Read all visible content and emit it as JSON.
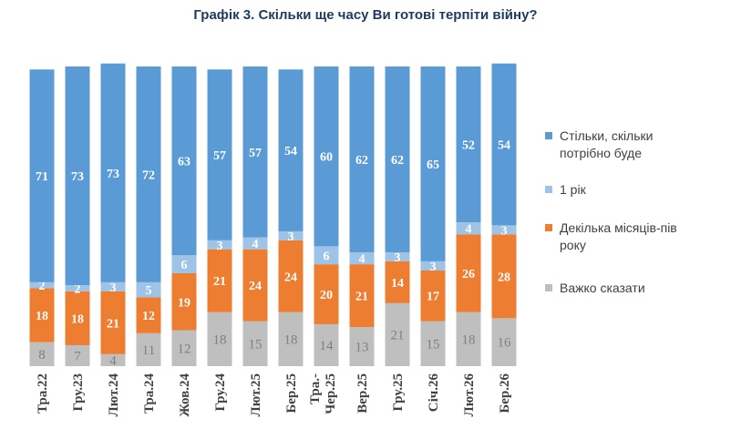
{
  "chart_data": {
    "type": "bar",
    "stacked": true,
    "title": "Графік 3. Скільки ще часу Ви готові терпіти війну?",
    "categories": [
      "Тра.22",
      "Гру.23",
      "Лют.24",
      "Тра.24",
      "Жов.24",
      "Гру.24",
      "Лют.25",
      "Бер.25",
      "Тра.-Чер.25",
      "Вер.25",
      "Гру.25",
      "Січ.26",
      "Лют.26",
      "Бер.26"
    ],
    "series": [
      {
        "name": "Важко сказати",
        "color": "#bfbfbf",
        "values": [
          8,
          7,
          4,
          11,
          12,
          18,
          15,
          18,
          14,
          13,
          21,
          15,
          18,
          16
        ]
      },
      {
        "name": "Декілька місяців-пів року",
        "color": "#ed7d31",
        "values": [
          18,
          18,
          21,
          12,
          19,
          21,
          24,
          24,
          20,
          21,
          14,
          17,
          26,
          28
        ]
      },
      {
        "name": "1 рік",
        "color": "#9dc3e6",
        "values": [
          2,
          2,
          3,
          5,
          6,
          3,
          4,
          3,
          6,
          4,
          3,
          3,
          4,
          3
        ]
      },
      {
        "name": "Стільки, скільки потрібно буде",
        "color": "#5b9bd5",
        "values": [
          71,
          73,
          73,
          72,
          63,
          57,
          57,
          54,
          60,
          62,
          62,
          65,
          52,
          54
        ]
      }
    ],
    "legend_order": [
      "Стільки, скільки потрібно буде",
      "1 рік",
      "Декілька місяців-пів року",
      "Важко сказати"
    ],
    "ylim": [
      0,
      100
    ],
    "grid": false,
    "legend_position": "right"
  }
}
